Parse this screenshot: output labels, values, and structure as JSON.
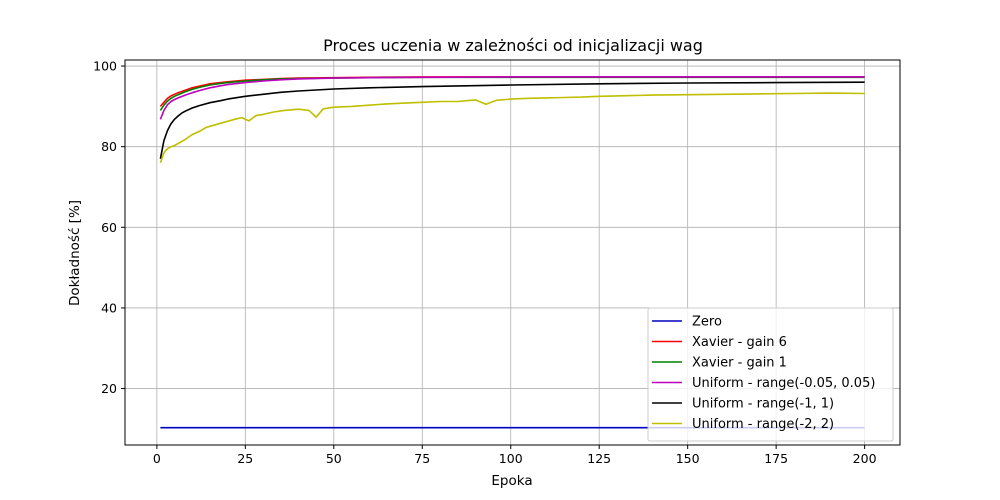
{
  "chart_data": {
    "type": "line",
    "title": "Proces uczenia w zależności od inicjalizacji wag",
    "xlabel": "Epoka",
    "ylabel": "Dokładność [%]",
    "xlim": [
      -9,
      210
    ],
    "ylim": [
      6,
      101.5
    ],
    "xticks": [
      0,
      25,
      50,
      75,
      100,
      125,
      150,
      175,
      200
    ],
    "yticks": [
      20,
      40,
      60,
      80,
      100
    ],
    "grid": true,
    "legend_position": "lower-right",
    "series": [
      {
        "name": "Zero",
        "color": "#0000bf",
        "x": [
          1,
          200
        ],
        "y": [
          10.3,
          10.3
        ]
      },
      {
        "name": "Xavier - gain 6",
        "color": "#ff0000",
        "x": [
          1,
          2,
          3,
          4,
          5,
          6,
          8,
          10,
          12,
          15,
          18,
          20,
          25,
          30,
          35,
          40,
          50,
          60,
          75,
          100,
          125,
          150,
          175,
          200
        ],
        "y": [
          90.0,
          91.0,
          92.0,
          92.6,
          93.0,
          93.4,
          94.0,
          94.6,
          95.0,
          95.6,
          95.9,
          96.1,
          96.5,
          96.7,
          96.9,
          97.0,
          97.1,
          97.2,
          97.3,
          97.3,
          97.3,
          97.3,
          97.3,
          97.3
        ]
      },
      {
        "name": "Xavier - gain 1",
        "color": "#008000",
        "x": [
          1,
          2,
          3,
          4,
          5,
          6,
          8,
          10,
          12,
          15,
          18,
          20,
          25,
          30,
          35,
          40,
          50,
          60,
          75,
          100,
          125,
          150,
          175,
          200
        ],
        "y": [
          89.0,
          90.3,
          91.3,
          92.0,
          92.5,
          92.9,
          93.6,
          94.2,
          94.7,
          95.3,
          95.7,
          95.9,
          96.3,
          96.6,
          96.8,
          96.9,
          97.0,
          97.1,
          97.2,
          97.2,
          97.2,
          97.2,
          97.2,
          97.2
        ]
      },
      {
        "name": "Uniform - range(-0.05, 0.05)",
        "color": "#bf00bf",
        "x": [
          1,
          2,
          3,
          4,
          5,
          6,
          8,
          10,
          12,
          15,
          18,
          20,
          25,
          30,
          35,
          40,
          50,
          60,
          75,
          100,
          125,
          150,
          175,
          200
        ],
        "y": [
          86.8,
          89.0,
          90.4,
          91.2,
          91.7,
          92.1,
          92.8,
          93.4,
          93.9,
          94.6,
          95.1,
          95.4,
          95.9,
          96.3,
          96.6,
          96.8,
          97.0,
          97.1,
          97.2,
          97.3,
          97.3,
          97.3,
          97.3,
          97.3
        ]
      },
      {
        "name": "Uniform - range(-1, 1)",
        "color": "#000000",
        "x": [
          1,
          2,
          3,
          4,
          5,
          6,
          7,
          8,
          10,
          12,
          15,
          18,
          20,
          25,
          30,
          35,
          40,
          50,
          60,
          75,
          100,
          125,
          150,
          175,
          200
        ],
        "y": [
          77.0,
          81.5,
          84.0,
          85.7,
          86.8,
          87.6,
          88.3,
          88.8,
          89.6,
          90.2,
          90.9,
          91.4,
          91.8,
          92.5,
          93.0,
          93.5,
          93.8,
          94.3,
          94.6,
          94.9,
          95.3,
          95.6,
          95.8,
          95.9,
          96.0
        ]
      },
      {
        "name": "Uniform - range(-2, 2)",
        "color": "#bfbf00",
        "x": [
          1,
          2,
          3,
          4,
          5,
          6,
          8,
          10,
          12,
          14,
          16,
          18,
          20,
          22,
          24,
          26,
          28,
          30,
          33,
          36,
          40,
          43,
          45,
          47,
          50,
          55,
          60,
          65,
          70,
          75,
          80,
          85,
          90,
          93,
          96,
          100,
          105,
          110,
          115,
          120,
          125,
          130,
          140,
          150,
          160,
          170,
          180,
          190,
          200
        ],
        "y": [
          76.0,
          78.5,
          79.5,
          80.0,
          80.3,
          80.8,
          81.8,
          83.0,
          83.8,
          84.8,
          85.3,
          85.8,
          86.3,
          86.8,
          87.2,
          86.4,
          87.7,
          88.0,
          88.6,
          89.0,
          89.3,
          89.0,
          87.3,
          89.4,
          89.8,
          90.0,
          90.3,
          90.6,
          90.8,
          91.0,
          91.2,
          91.2,
          91.6,
          90.5,
          91.5,
          91.8,
          92.0,
          92.1,
          92.2,
          92.3,
          92.5,
          92.6,
          92.8,
          92.9,
          93.0,
          93.1,
          93.2,
          93.3,
          93.2
        ]
      }
    ]
  }
}
